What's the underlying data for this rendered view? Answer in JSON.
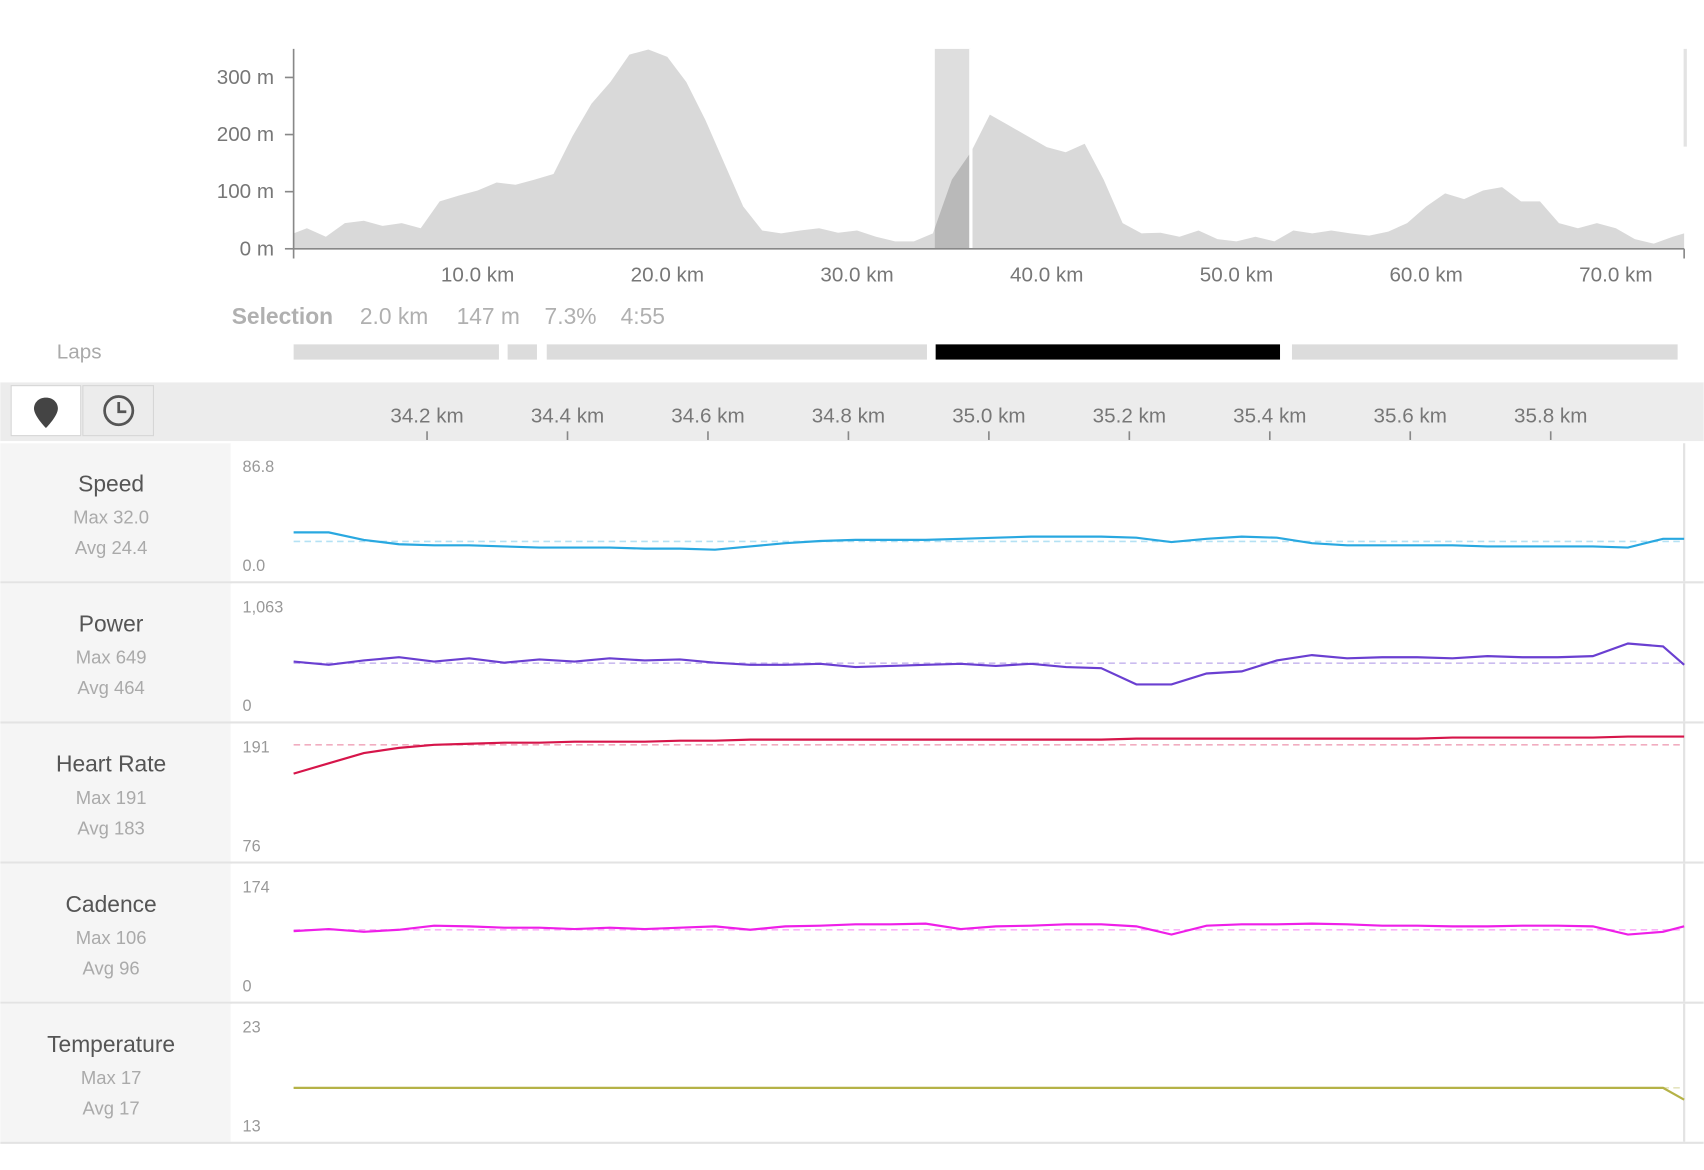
{
  "chart_data": [
    {
      "type": "area",
      "color": "#d9d9d9",
      "x": [
        0.3,
        1,
        2,
        3,
        4,
        5,
        6,
        7,
        8,
        9,
        10,
        11,
        12,
        13,
        14,
        15,
        16,
        17,
        18,
        19,
        20,
        21,
        22,
        23,
        24,
        25,
        26,
        27,
        28,
        29,
        30,
        31,
        32,
        33,
        34,
        35,
        36,
        37,
        38,
        39,
        40,
        41,
        42,
        43,
        44,
        45,
        46,
        47,
        48,
        49,
        50,
        51,
        52,
        53,
        54,
        55,
        56,
        57,
        58,
        59,
        60,
        61,
        62,
        63,
        64,
        65,
        66,
        67,
        68,
        69,
        70,
        71,
        72,
        73,
        73.6
      ],
      "values": [
        27,
        36,
        21,
        45,
        49,
        40,
        45,
        36,
        83,
        93,
        102,
        116,
        112,
        121,
        131,
        197,
        254,
        292,
        340,
        349,
        336,
        292,
        226,
        150,
        74,
        32,
        27,
        32,
        36,
        28,
        32,
        21,
        13,
        13,
        27,
        121,
        169,
        235,
        216,
        197,
        178,
        169,
        184,
        121,
        45,
        27,
        28,
        21,
        32,
        17,
        13,
        21,
        13,
        32,
        27,
        32,
        27,
        23,
        30,
        45,
        74,
        97,
        87,
        102,
        108,
        83,
        83,
        45,
        36,
        45,
        36,
        17,
        9,
        21,
        27
      ],
      "xlim": [
        0.3,
        73.6
      ],
      "ylim": [
        0,
        350
      ],
      "xticks": [
        {
          "value": 10,
          "label": "10.0 km"
        },
        {
          "value": 20,
          "label": "20.0 km"
        },
        {
          "value": 30,
          "label": "30.0 km"
        },
        {
          "value": 40,
          "label": "40.0 km"
        },
        {
          "value": 50,
          "label": "50.0 km"
        },
        {
          "value": 60,
          "label": "60.0 km"
        },
        {
          "value": 70,
          "label": "70.0 km"
        }
      ],
      "yticks": [
        {
          "value": 0,
          "label": "0 m"
        },
        {
          "value": 100,
          "label": "100 m"
        },
        {
          "value": 200,
          "label": "200 m"
        },
        {
          "value": 300,
          "label": "300 m"
        }
      ],
      "selection_range": [
        34.1,
        36.0
      ]
    },
    {
      "type": "line",
      "title": "Speed",
      "max": "Max 32.0",
      "avg": "Avg 24.4",
      "avg_value": 24.4,
      "color": "#29a8e0",
      "x": [
        34.01,
        34.06,
        34.11,
        34.16,
        34.21,
        34.26,
        34.31,
        34.36,
        34.41,
        34.46,
        34.51,
        34.56,
        34.61,
        34.66,
        34.71,
        34.76,
        34.81,
        34.86,
        34.91,
        34.96,
        35.01,
        35.06,
        35.11,
        35.16,
        35.21,
        35.26,
        35.31,
        35.36,
        35.41,
        35.46,
        35.51,
        35.56,
        35.61,
        35.66,
        35.71,
        35.76,
        35.81,
        35.86,
        35.91,
        35.96,
        35.99
      ],
      "values": [
        31.0,
        31.0,
        25.5,
        22.3,
        21.5,
        21.5,
        20.7,
        19.9,
        19.9,
        19.9,
        19.1,
        19.1,
        18.3,
        20.7,
        23.1,
        24.7,
        25.5,
        25.5,
        25.5,
        26.3,
        27.1,
        27.9,
        27.9,
        27.9,
        27.1,
        23.9,
        26.3,
        27.9,
        27.1,
        23.1,
        21.5,
        21.5,
        21.5,
        21.5,
        20.7,
        20.7,
        20.7,
        20.7,
        19.9,
        26.3,
        26.3
      ],
      "ylim": [
        0,
        86.8
      ],
      "yticks": [
        {
          "value": 0,
          "label": "0.0"
        },
        86.8
      ]
    },
    {
      "type": "line",
      "title": "Power",
      "max": "Max 649",
      "avg": "Avg 464",
      "avg_value": 464,
      "color": "#6a3fd1",
      "x": [
        34.01,
        34.06,
        34.11,
        34.16,
        34.21,
        34.26,
        34.31,
        34.36,
        34.41,
        34.46,
        34.51,
        34.56,
        34.61,
        34.66,
        34.71,
        34.76,
        34.81,
        34.86,
        34.91,
        34.96,
        35.01,
        35.06,
        35.11,
        35.16,
        35.21,
        35.26,
        35.31,
        35.36,
        35.41,
        35.46,
        35.51,
        35.56,
        35.61,
        35.66,
        35.71,
        35.76,
        35.81,
        35.86,
        35.91,
        35.96,
        35.99
      ],
      "values": [
        478,
        449,
        488,
        517,
        478,
        507,
        468,
        497,
        478,
        507,
        488,
        497,
        468,
        449,
        449,
        458,
        429,
        439,
        449,
        458,
        439,
        458,
        429,
        419,
        273,
        273,
        371,
        390,
        488,
        536,
        507,
        517,
        517,
        507,
        527,
        517,
        517,
        527,
        640,
        614,
        449
      ],
      "ylim": [
        0,
        1063
      ],
      "yticks": [
        0,
        {
          "value": 1063,
          "label": "1,063"
        }
      ]
    },
    {
      "type": "line",
      "title": "Heart Rate",
      "max": "Max 191",
      "avg": "Avg 183",
      "avg_value": 183,
      "color": "#d6154a",
      "x": [
        34.01,
        34.06,
        34.11,
        34.16,
        34.21,
        34.26,
        34.31,
        34.36,
        34.41,
        34.46,
        34.51,
        34.56,
        34.61,
        34.66,
        34.71,
        34.76,
        34.81,
        34.86,
        34.91,
        34.96,
        35.01,
        35.06,
        35.11,
        35.16,
        35.21,
        35.26,
        35.31,
        35.36,
        35.41,
        35.46,
        35.51,
        35.56,
        35.61,
        35.66,
        35.71,
        35.76,
        35.81,
        35.86,
        35.91,
        35.96,
        35.99
      ],
      "values": [
        155,
        165,
        175,
        180,
        183,
        184,
        185,
        185,
        186,
        186,
        186,
        187,
        187,
        188,
        188,
        188,
        188,
        188,
        188,
        188,
        188,
        188,
        188,
        188,
        189,
        189,
        189,
        189,
        189,
        189,
        189,
        189,
        189,
        190,
        190,
        190,
        190,
        190,
        191,
        191,
        191
      ],
      "ylim": [
        76,
        191
      ],
      "yticks": [
        76,
        191
      ]
    },
    {
      "type": "line",
      "title": "Cadence",
      "max": "Max 106",
      "avg": "Avg 96",
      "avg_value": 96,
      "color": "#ee1fe8",
      "x": [
        34.01,
        34.06,
        34.11,
        34.16,
        34.21,
        34.26,
        34.31,
        34.36,
        34.41,
        34.46,
        34.51,
        34.56,
        34.61,
        34.66,
        34.71,
        34.76,
        34.81,
        34.86,
        34.91,
        34.96,
        35.01,
        35.06,
        35.11,
        35.16,
        35.21,
        35.26,
        35.31,
        35.36,
        35.41,
        35.46,
        35.51,
        35.56,
        35.61,
        35.66,
        35.71,
        35.76,
        35.81,
        35.86,
        35.91,
        35.96,
        35.99
      ],
      "values": [
        94,
        97,
        93,
        96,
        102,
        101,
        99,
        99,
        97,
        99,
        97,
        99,
        101,
        96,
        101,
        102,
        104,
        104,
        105,
        97,
        101,
        102,
        104,
        104,
        101,
        89,
        102,
        104,
        104,
        105,
        104,
        102,
        102,
        101,
        101,
        102,
        102,
        101,
        89,
        93,
        101
      ],
      "ylim": [
        0,
        174
      ],
      "yticks": [
        0,
        174
      ]
    },
    {
      "type": "line",
      "title": "Temperature",
      "max": "Max 17",
      "avg": "Avg 17",
      "avg_value": 17,
      "color": "#b5b247",
      "x": [
        34.01,
        34.06,
        34.11,
        34.16,
        34.21,
        34.26,
        34.31,
        34.36,
        34.41,
        34.46,
        34.51,
        34.56,
        34.61,
        34.66,
        34.71,
        34.76,
        34.81,
        34.86,
        34.91,
        34.96,
        35.01,
        35.06,
        35.11,
        35.16,
        35.21,
        35.26,
        35.31,
        35.36,
        35.41,
        35.46,
        35.51,
        35.56,
        35.61,
        35.66,
        35.71,
        35.76,
        35.81,
        35.86,
        35.91,
        35.96,
        35.99
      ],
      "values": [
        17,
        17,
        17,
        17,
        17,
        17,
        17,
        17,
        17,
        17,
        17,
        17,
        17,
        17,
        17,
        17,
        17,
        17,
        17,
        17,
        17,
        17,
        17,
        17,
        17,
        17,
        17,
        17,
        17,
        17,
        17,
        17,
        17,
        17,
        17,
        17,
        17,
        17,
        17,
        17,
        16.0
      ],
      "ylim": [
        13,
        23
      ],
      "yticks": [
        13,
        23
      ]
    }
  ],
  "detail_axis": {
    "xlim": [
      34.01,
      35.99
    ],
    "xticks": [
      {
        "value": 34.2,
        "label": "34.2 km"
      },
      {
        "value": 34.4,
        "label": "34.4 km"
      },
      {
        "value": 34.6,
        "label": "34.6 km"
      },
      {
        "value": 34.8,
        "label": "34.8 km"
      },
      {
        "value": 35.0,
        "label": "35.0 km"
      },
      {
        "value": 35.2,
        "label": "35.2 km"
      },
      {
        "value": 35.4,
        "label": "35.4 km"
      },
      {
        "value": 35.6,
        "label": "35.6 km"
      },
      {
        "value": 35.8,
        "label": "35.8 km"
      }
    ]
  },
  "selection": {
    "label": "Selection",
    "distance": "2.0 km",
    "elevation": "147 m",
    "grade": "7.3%",
    "time": "4:55"
  },
  "laps": {
    "label": "Laps"
  }
}
